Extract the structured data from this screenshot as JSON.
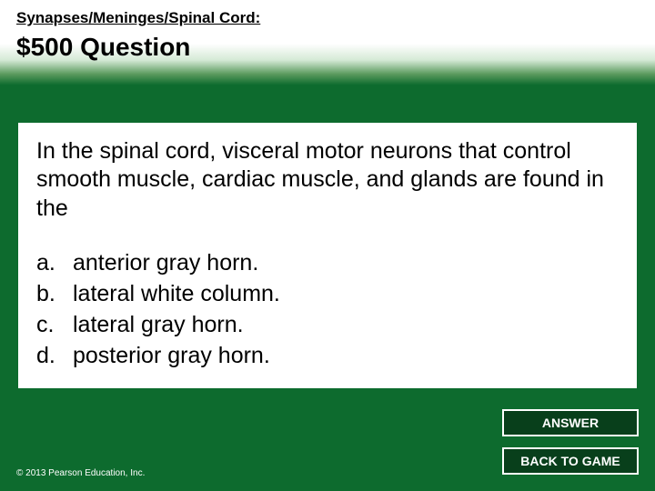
{
  "colors": {
    "slide_bg": "#0d6b2e",
    "content_bg": "#ffffff",
    "button_bg": "#083f1b",
    "button_border": "#ffffff",
    "text_dark": "#000000",
    "text_light": "#ffffff"
  },
  "header": {
    "breadcrumb": "Synapses/Meninges/Spinal Cord:",
    "title": "$500 Question"
  },
  "content": {
    "question": "In the spinal cord, visceral motor neurons that control smooth muscle, cardiac muscle, and glands are found in the",
    "options": [
      {
        "letter": "a.",
        "text": "anterior gray horn."
      },
      {
        "letter": "b.",
        "text": "lateral white column."
      },
      {
        "letter": "c.",
        "text": "lateral gray horn."
      },
      {
        "letter": "d.",
        "text": "posterior gray horn."
      }
    ]
  },
  "buttons": {
    "answer": "ANSWER",
    "back": "BACK TO GAME"
  },
  "footer": {
    "copyright": "© 2013 Pearson Education, Inc."
  }
}
